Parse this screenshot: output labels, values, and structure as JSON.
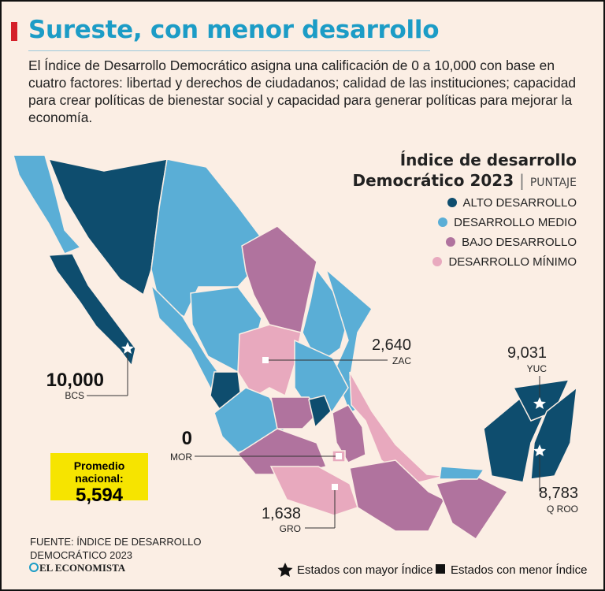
{
  "header": {
    "title": "Sureste, con menor desarrollo",
    "description": "El Índice de Desarrollo Democrático asigna una calificación de 0 a 10,000 con base en cuatro factores: libertad y derechos de ciudadanos; calidad de las instituciones; capacidad para crear políticas de bienestar social y capacidad para generar políticas para mejorar la economía."
  },
  "legend": {
    "title_line1": "Índice de desarrollo",
    "title_line2": "Democrático 2023",
    "unit": "PUNTAJE",
    "items": [
      {
        "label": "ALTO DESARROLLO",
        "color": "#0e4d6e"
      },
      {
        "label": "DESARROLLO MEDIO",
        "color": "#5aaed6"
      },
      {
        "label": "BAJO DESARROLLO",
        "color": "#b0739e"
      },
      {
        "label": "DESARROLLO MÍNIMO",
        "color": "#e8a9be"
      }
    ]
  },
  "callouts": [
    {
      "value": "10,000",
      "state": "BCS"
    },
    {
      "value": "2,640",
      "state": "ZAC"
    },
    {
      "value": "9,031",
      "state": "YUC"
    },
    {
      "value": "0",
      "state": "MOR"
    },
    {
      "value": "1,638",
      "state": "GRO"
    },
    {
      "value": "8,783",
      "state": "Q ROO"
    }
  ],
  "average": {
    "label": "Promedio nacional:",
    "value": "5,594"
  },
  "source": {
    "line1": "FUENTE: ÍNDICE DE DESARROLLO",
    "line2": "DEMOCRÁTICO 2023"
  },
  "brand": "EL ECONOMISTA",
  "key": {
    "max": "Estados con mayor Índice",
    "min": "Estados con menor Índice"
  }
}
